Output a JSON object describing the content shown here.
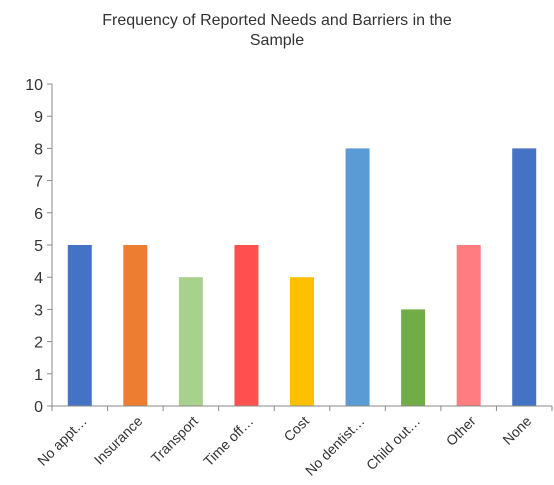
{
  "chart_data": {
    "type": "bar",
    "title_lines": [
      "Frequency of Reported Needs and Barriers in the",
      "Sample"
    ],
    "categories": [
      "No appt…",
      "Insurance",
      "Transport",
      "Time off…",
      "Cost",
      "No dentist…",
      "Child out…",
      "Other",
      "None"
    ],
    "values": [
      5,
      5,
      4,
      5,
      4,
      8,
      3,
      5,
      8
    ],
    "colors": [
      "#4472C4",
      "#ED7D31",
      "#A9D18E",
      "#FF5050",
      "#FFC000",
      "#5B9BD5",
      "#70AD47",
      "#FF7C80",
      "#4472C4"
    ],
    "ylim": [
      0,
      10
    ],
    "yticks": [
      0,
      1,
      2,
      3,
      4,
      5,
      6,
      7,
      8,
      9,
      10
    ],
    "xlabel": "",
    "ylabel": "",
    "grid": false,
    "legend": "none"
  }
}
